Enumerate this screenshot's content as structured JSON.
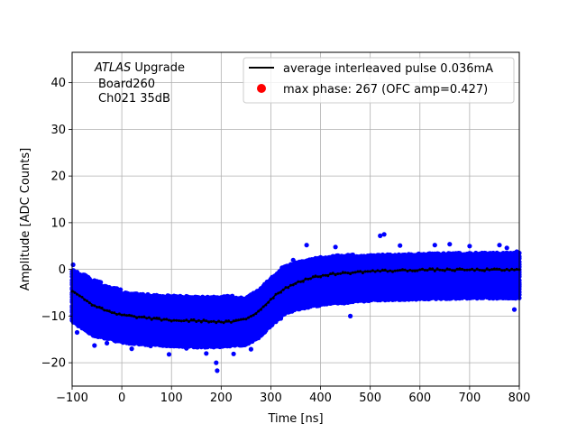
{
  "chart_data": {
    "type": "scatter",
    "title": "",
    "xlabel": "Time [ns]",
    "ylabel": "Amplitude [ADC Counts]",
    "xlim": [
      -100,
      800
    ],
    "ylim": [
      -25,
      46.5
    ],
    "xticks": [
      -100,
      0,
      100,
      200,
      300,
      400,
      500,
      600,
      700,
      800
    ],
    "yticks": [
      -20,
      -10,
      0,
      10,
      20,
      30,
      40
    ],
    "grid": true,
    "legend_position": "top-right",
    "annotation": {
      "line1_italic": "ATLAS",
      "line1_rest": " Upgrade",
      "line2": "Board260",
      "line3": "Ch021 35dB"
    },
    "series": [
      {
        "name": "average interleaved pulse 0.036mA",
        "kind": "line",
        "color": "#000000",
        "x": [
          -100,
          -80,
          -60,
          -40,
          -20,
          0,
          25,
          50,
          75,
          100,
          125,
          150,
          175,
          200,
          225,
          250,
          270,
          290,
          310,
          330,
          350,
          375,
          400,
          425,
          450,
          475,
          500,
          525,
          550,
          575,
          600,
          650,
          700,
          750,
          800
        ],
        "y": [
          -4.5,
          -6.0,
          -7.5,
          -8.5,
          -9.3,
          -9.8,
          -10.1,
          -10.4,
          -10.7,
          -10.9,
          -11.0,
          -11.0,
          -11.1,
          -11.3,
          -11.2,
          -10.6,
          -9.4,
          -7.5,
          -5.4,
          -4.0,
          -2.9,
          -2.0,
          -1.4,
          -1.0,
          -0.8,
          -0.6,
          -0.4,
          -0.3,
          -0.3,
          -0.2,
          -0.1,
          -0.1,
          -0.1,
          -0.1,
          -0.1
        ]
      },
      {
        "name": "max phase: 267 (OFC amp=0.427)",
        "kind": "marker",
        "color": "#ff0000"
      },
      {
        "name": "",
        "kind": "scatter-band",
        "color": "#0000ff",
        "band_x": [
          -100,
          -80,
          -60,
          -40,
          -20,
          0,
          50,
          100,
          150,
          200,
          250,
          275,
          300,
          325,
          350,
          400,
          450,
          500,
          600,
          700,
          800
        ],
        "band_low": [
          -11.0,
          -12.5,
          -14.0,
          -14.5,
          -15.0,
          -15.5,
          -16.0,
          -16.3,
          -16.5,
          -16.5,
          -16.0,
          -14.5,
          -12.0,
          -9.5,
          -8.5,
          -7.5,
          -7.0,
          -6.5,
          -6.2,
          -6.0,
          -6.0
        ],
        "band_high": [
          0.0,
          -1.0,
          -2.0,
          -3.0,
          -3.8,
          -4.5,
          -5.0,
          -5.3,
          -5.5,
          -5.8,
          -5.8,
          -4.5,
          -1.8,
          0.5,
          1.5,
          2.5,
          3.0,
          3.2,
          3.5,
          3.5,
          3.5
        ],
        "outliers": [
          [
            -98,
            1.0
          ],
          [
            -90,
            -13.5
          ],
          [
            -75,
            -12.8
          ],
          [
            -55,
            -16.3
          ],
          [
            -30,
            -15.8
          ],
          [
            20,
            -17.0
          ],
          [
            58,
            -16.4
          ],
          [
            95,
            -18.2
          ],
          [
            130,
            -16.9
          ],
          [
            170,
            -18.0
          ],
          [
            190,
            -20.0
          ],
          [
            192,
            -21.7
          ],
          [
            225,
            -18.1
          ],
          [
            260,
            -17.1
          ],
          [
            320,
            -10.5
          ],
          [
            345,
            2.0
          ],
          [
            372,
            5.2
          ],
          [
            430,
            4.8
          ],
          [
            460,
            -10.0
          ],
          [
            520,
            7.2
          ],
          [
            528,
            7.5
          ],
          [
            560,
            5.1
          ],
          [
            630,
            5.2
          ],
          [
            660,
            5.4
          ],
          [
            700,
            5.0
          ],
          [
            760,
            5.2
          ],
          [
            775,
            4.6
          ],
          [
            790,
            -8.6
          ],
          [
            795,
            3.8
          ]
        ]
      }
    ]
  }
}
